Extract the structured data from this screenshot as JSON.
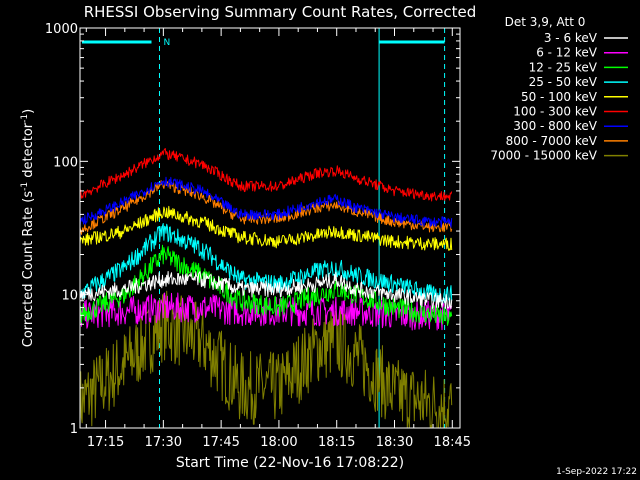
{
  "chart_data": {
    "type": "line",
    "title": "RHESSI Observing Summary Count Rates, Corrected",
    "xlabel": "Start Time (22-Nov-16 17:08:22)",
    "ylabel": "Corrected Count Rate (s⁻¹ detector⁻¹)",
    "ylabel_parts": {
      "base": "Corrected Count Rate (s",
      "sup1": "-1",
      "mid": " detector",
      "sup2": "-1",
      "end": ")"
    },
    "y_scale": "log",
    "ylim": [
      1,
      1000
    ],
    "xlim": [
      "17:08:22",
      "18:47:00"
    ],
    "x_ticks": [
      "17:15",
      "17:30",
      "17:45",
      "18:00",
      "18:15",
      "18:30",
      "18:45"
    ],
    "y_ticks": [
      "1",
      "10",
      "100",
      "1000"
    ],
    "grid": false,
    "legend_position": "top-right",
    "legend_title": "Det 3,9, Att 0",
    "flag_label": "N",
    "footer_date": "1-Sep-2022 17:22",
    "series": [
      {
        "name": "3 - 6 keV",
        "color": "#ffffff",
        "time": [
          "17:08",
          "17:20",
          "17:30",
          "17:40",
          "17:50",
          "18:00",
          "18:10",
          "18:15",
          "18:20",
          "18:30",
          "18:40",
          "18:45"
        ],
        "values": [
          10,
          11,
          13,
          13,
          11,
          11,
          12,
          13,
          11,
          10,
          9,
          9
        ]
      },
      {
        "name": "6 - 12 keV",
        "color": "#ff00ff",
        "time": [
          "17:08",
          "17:20",
          "17:30",
          "17:40",
          "17:50",
          "18:00",
          "18:10",
          "18:15",
          "18:20",
          "18:30",
          "18:40",
          "18:45"
        ],
        "values": [
          7,
          7.5,
          8,
          8,
          7.5,
          7.5,
          7.5,
          7.5,
          7.5,
          7,
          7,
          7
        ]
      },
      {
        "name": "12 - 25 keV",
        "color": "#00ff00",
        "time": [
          "17:08",
          "17:20",
          "17:30",
          "17:40",
          "17:50",
          "18:00",
          "18:10",
          "18:15",
          "18:20",
          "18:30",
          "18:40",
          "18:45"
        ],
        "values": [
          7,
          10,
          20,
          14,
          9,
          8,
          10,
          11,
          10,
          8,
          7,
          6.5
        ]
      },
      {
        "name": "25 - 50 keV",
        "color": "#00ffff",
        "time": [
          "17:08",
          "17:20",
          "17:30",
          "17:40",
          "17:50",
          "18:00",
          "18:10",
          "18:15",
          "18:20",
          "18:30",
          "18:40",
          "18:45"
        ],
        "values": [
          10,
          16,
          30,
          22,
          13,
          12,
          15,
          16,
          14,
          12,
          10,
          10
        ]
      },
      {
        "name": "50 - 100 keV",
        "color": "#ffff00",
        "time": [
          "17:08",
          "17:20",
          "17:30",
          "17:40",
          "17:50",
          "18:00",
          "18:10",
          "18:15",
          "18:20",
          "18:30",
          "18:40",
          "18:45"
        ],
        "values": [
          25,
          30,
          42,
          35,
          27,
          25,
          28,
          30,
          28,
          25,
          24,
          24
        ]
      },
      {
        "name": "100 - 300 keV",
        "color": "#ff0000",
        "time": [
          "17:08",
          "17:20",
          "17:30",
          "17:40",
          "17:50",
          "18:00",
          "18:10",
          "18:15",
          "18:20",
          "18:30",
          "18:40",
          "18:45"
        ],
        "values": [
          55,
          80,
          115,
          95,
          65,
          65,
          82,
          85,
          75,
          60,
          55,
          55
        ]
      },
      {
        "name": "300 - 800 keV",
        "color": "#0000ff",
        "time": [
          "17:08",
          "17:20",
          "17:30",
          "17:40",
          "17:50",
          "18:00",
          "18:10",
          "18:15",
          "18:20",
          "18:30",
          "18:40",
          "18:45"
        ],
        "values": [
          35,
          50,
          72,
          60,
          40,
          40,
          50,
          52,
          45,
          38,
          35,
          35
        ]
      },
      {
        "name": "800 - 7000 keV",
        "color": "#ff8000",
        "time": [
          "17:08",
          "17:20",
          "17:30",
          "17:40",
          "17:50",
          "18:00",
          "18:10",
          "18:15",
          "18:20",
          "18:30",
          "18:40",
          "18:45"
        ],
        "values": [
          30,
          45,
          68,
          55,
          37,
          37,
          45,
          47,
          42,
          35,
          32,
          32
        ]
      },
      {
        "name": "7000 - 15000 keV",
        "color": "#808000",
        "time": [
          "17:08",
          "17:20",
          "17:30",
          "17:40",
          "17:50",
          "18:00",
          "18:10",
          "18:15",
          "18:20",
          "18:30",
          "18:40",
          "18:45"
        ],
        "values": [
          1.5,
          3,
          6,
          4.5,
          2,
          2,
          4,
          4.5,
          3.5,
          1.8,
          1.5,
          1.5
        ]
      }
    ]
  }
}
